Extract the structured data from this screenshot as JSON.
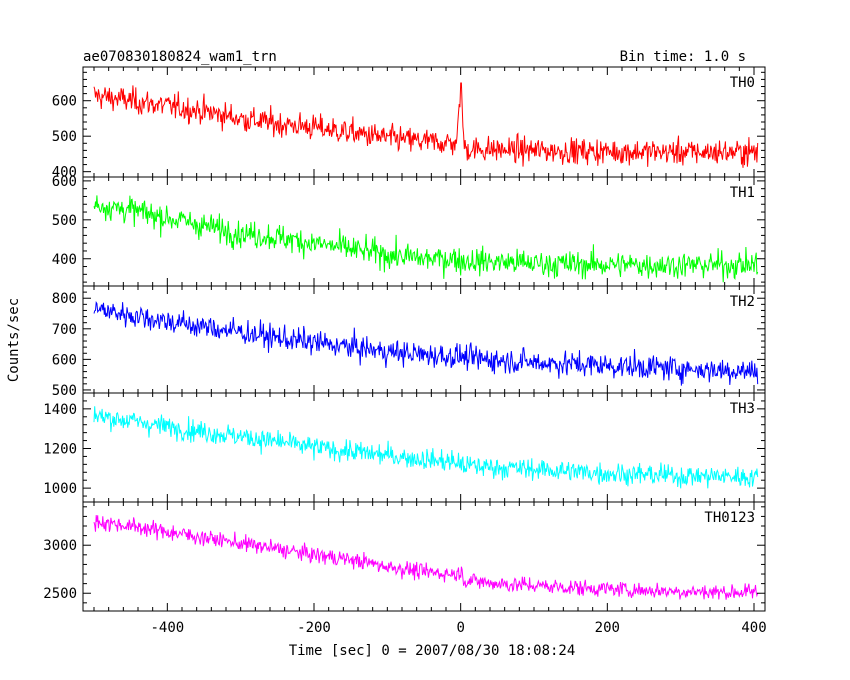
{
  "header": {
    "title": "ae070830180824_wam1_trn",
    "bin_time": "Bin time: 1.0 s"
  },
  "chart_data": {
    "type": "line",
    "title": "ae070830180824_wam1_trn",
    "xlabel": "Time [sec] 0 = 2007/08/30 18:08:24",
    "ylabel": "Counts/sec",
    "xlim": [
      -515,
      415
    ],
    "x_ticks": [
      -400,
      -200,
      0,
      200,
      400
    ],
    "grid": false,
    "x": [
      -500,
      -450,
      -400,
      -350,
      -300,
      -250,
      -200,
      -150,
      -100,
      -50,
      -5,
      0,
      5,
      50,
      100,
      150,
      200,
      250,
      300,
      350,
      400
    ],
    "series": [
      {
        "name": "TH0",
        "color": "#ff0000",
        "ylim": [
          385,
          695
        ],
        "y_ticks": [
          400,
          500,
          600
        ],
        "values": [
          615,
          600,
          585,
          570,
          550,
          535,
          525,
          510,
          495,
          485,
          480,
          650,
          465,
          462,
          460,
          458,
          457,
          456,
          455,
          455,
          455
        ]
      },
      {
        "name": "TH1",
        "color": "#00ff00",
        "ylim": [
          330,
          610
        ],
        "y_ticks": [
          400,
          500,
          600
        ],
        "values": [
          540,
          525,
          505,
          485,
          465,
          455,
          440,
          425,
          410,
          400,
          400,
          395,
          395,
          392,
          388,
          386,
          385,
          384,
          384,
          384,
          385
        ]
      },
      {
        "name": "TH2",
        "color": "#0000ff",
        "ylim": [
          490,
          840
        ],
        "y_ticks": [
          500,
          600,
          700,
          800
        ],
        "values": [
          765,
          745,
          725,
          705,
          690,
          670,
          655,
          640,
          625,
          615,
          610,
          612,
          605,
          598,
          590,
          585,
          580,
          575,
          570,
          565,
          562
        ]
      },
      {
        "name": "TH3",
        "color": "#00ffff",
        "ylim": [
          930,
          1480
        ],
        "y_ticks": [
          1000,
          1200,
          1400
        ],
        "values": [
          1365,
          1340,
          1310,
          1285,
          1260,
          1235,
          1205,
          1185,
          1165,
          1145,
          1130,
          1120,
          1115,
          1105,
          1095,
          1085,
          1075,
          1068,
          1062,
          1060,
          1055
        ]
      },
      {
        "name": "TH0123",
        "color": "#ff00ff",
        "ylim": [
          2315,
          3450
        ],
        "y_ticks": [
          2500,
          3000
        ],
        "values": [
          3250,
          3200,
          3140,
          3080,
          3020,
          2960,
          2900,
          2850,
          2780,
          2720,
          2700,
          2730,
          2640,
          2600,
          2580,
          2560,
          2545,
          2530,
          2520,
          2512,
          2510
        ]
      }
    ]
  }
}
